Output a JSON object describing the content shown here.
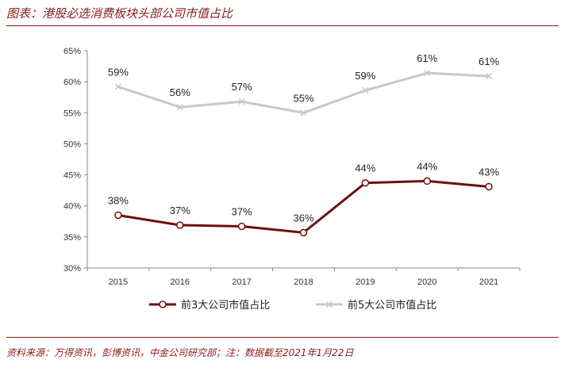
{
  "header": {
    "title": "图表：港股必选消费板块头部公司市值占比"
  },
  "footer": {
    "source": "资料来源：万得资讯，彭博资讯，中金公司研究部；注：数据截至2021年1月22日"
  },
  "chart_data": {
    "type": "line",
    "title": "图表：港股必选消费板块头部公司市值占比",
    "categories": [
      "2015",
      "2016",
      "2017",
      "2018",
      "2019",
      "2020",
      "2021"
    ],
    "yticks": [
      "30%",
      "35%",
      "40%",
      "45%",
      "50%",
      "55%",
      "60%",
      "65%"
    ],
    "ylim": [
      30,
      65
    ],
    "grid": false,
    "legend_position": "bottom",
    "series": [
      {
        "name": "前3大公司市值占比",
        "marker": "circle",
        "color": "#6e0f0f",
        "values": [
          38.5,
          36.9,
          36.7,
          35.7,
          43.7,
          44.0,
          43.1
        ],
        "labels": [
          "38%",
          "37%",
          "37%",
          "36%",
          "44%",
          "44%",
          "43%"
        ]
      },
      {
        "name": "前5大公司市值占比",
        "marker": "x",
        "color": "#c9c9c4",
        "values": [
          59.2,
          55.9,
          56.8,
          55.0,
          58.6,
          61.4,
          60.9
        ],
        "labels": [
          "59%",
          "56%",
          "57%",
          "55%",
          "59%",
          "61%",
          "61%"
        ]
      }
    ]
  }
}
